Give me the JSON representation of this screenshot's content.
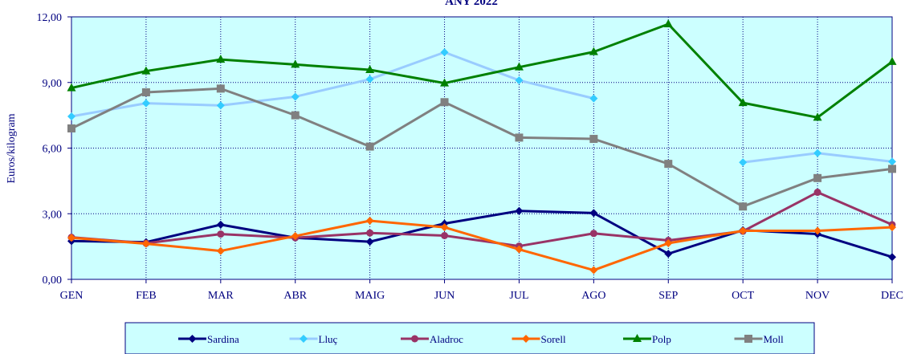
{
  "chart_data": {
    "type": "line",
    "title": "ANY 2022",
    "xlabel": "",
    "ylabel": "Euros/kilogram",
    "categories": [
      "GEN",
      "FEB",
      "MAR",
      "ABR",
      "MAIG",
      "JUN",
      "JUL",
      "AGO",
      "SEP",
      "OCT",
      "NOV",
      "DEC"
    ],
    "ylim": [
      0,
      12
    ],
    "yticks": [
      "0,00",
      "3,00",
      "6,00",
      "9,00",
      "12,00"
    ],
    "grid": true,
    "legend_position": "bottom",
    "plot_background": "#ccffff",
    "series": [
      {
        "name": "Sardina",
        "color": "#000080",
        "marker": "diamond",
        "values": [
          1.75,
          1.7,
          2.5,
          1.9,
          1.72,
          2.55,
          3.13,
          3.03,
          1.17,
          2.25,
          2.07,
          1.02
        ]
      },
      {
        "name": "Lluç",
        "color": "#99ccff",
        "marker": "diamond",
        "marker_color": "#33ccff",
        "values": [
          7.45,
          8.05,
          7.95,
          8.35,
          9.15,
          10.38,
          9.1,
          8.27,
          null,
          5.35,
          5.77,
          5.38
        ]
      },
      {
        "name": "Aladroc",
        "color": "#993366",
        "marker": "circle",
        "values": [
          1.92,
          1.65,
          2.07,
          1.9,
          2.12,
          2.0,
          1.52,
          2.1,
          1.78,
          2.2,
          3.98,
          2.5
        ]
      },
      {
        "name": "Sorell",
        "color": "#ff6600",
        "marker": "diamond",
        "values": [
          1.9,
          1.63,
          1.3,
          1.98,
          2.68,
          2.38,
          1.37,
          0.42,
          1.65,
          2.22,
          2.22,
          2.38
        ]
      },
      {
        "name": "Polp",
        "color": "#008000",
        "marker": "triangle",
        "values": [
          8.75,
          9.52,
          10.05,
          9.82,
          9.58,
          8.97,
          9.7,
          10.4,
          11.67,
          8.07,
          7.4,
          9.95
        ]
      },
      {
        "name": "Moll",
        "color": "#808080",
        "marker": "square",
        "values": [
          6.9,
          8.55,
          8.72,
          7.5,
          6.07,
          8.1,
          6.48,
          6.42,
          5.28,
          3.33,
          4.63,
          5.05
        ]
      }
    ]
  }
}
